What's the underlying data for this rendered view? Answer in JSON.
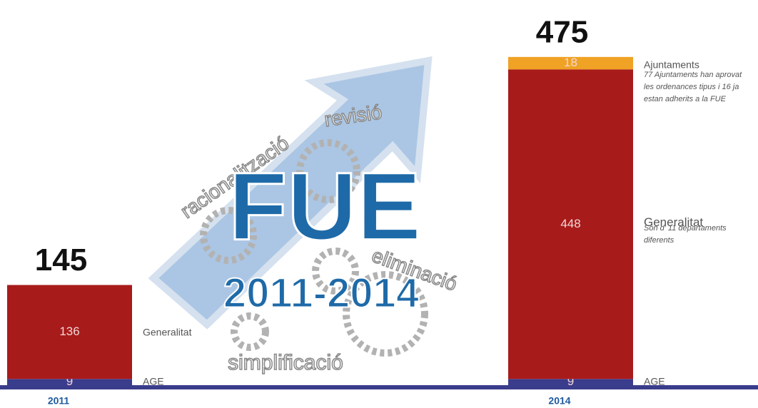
{
  "chart_data": {
    "type": "stacked-bar",
    "categories": [
      "2011",
      "2014"
    ],
    "totals": [
      145,
      475
    ],
    "series": [
      {
        "name": "AGE",
        "color": "#3a3c8c",
        "values": [
          9,
          9
        ]
      },
      {
        "name": "Generalitat",
        "color": "#a81b1b",
        "values": [
          136,
          448
        ],
        "note": "Són d' 11 departaments diferents"
      },
      {
        "name": "Ajuntaments",
        "color": "#f0a224",
        "values": [
          null,
          18
        ],
        "note": "77 Ajuntaments han aprovat les ordenances tipus i 16 ja estan adherits a la FUE"
      }
    ],
    "background_text": {
      "title": "FUE",
      "period": "2011-2014",
      "words": [
        "revisió",
        "racionalització",
        "eliminació",
        "simplificació"
      ]
    }
  }
}
